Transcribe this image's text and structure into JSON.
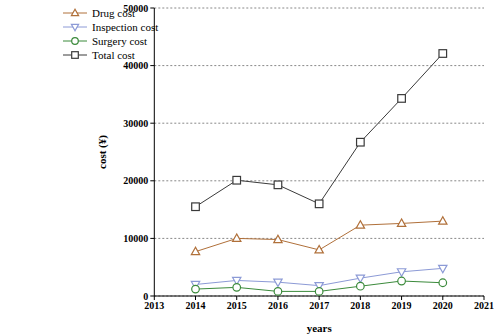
{
  "chart_data": {
    "type": "line",
    "x_label": "years",
    "y_label": "cost (¥)",
    "x": [
      2014,
      2015,
      2016,
      2017,
      2018,
      2019,
      2020
    ],
    "xlim": [
      2013,
      2021
    ],
    "xticks": [
      2013,
      2014,
      2015,
      2016,
      2017,
      2018,
      2019,
      2020,
      2021
    ],
    "ylim": [
      0,
      50000
    ],
    "yticks": [
      0,
      10000,
      20000,
      30000,
      40000,
      50000
    ],
    "grid": true,
    "legend": "upper left",
    "series": [
      {
        "name": "Total cost",
        "color": "#3a3a3a",
        "marker": "square",
        "values": [
          15500,
          20100,
          19300,
          16000,
          26700,
          34300,
          42100
        ]
      },
      {
        "name": "Drug cost",
        "color": "#b0703a",
        "marker": "triangle",
        "values": [
          7700,
          10000,
          9800,
          8000,
          12300,
          12600,
          13000
        ]
      },
      {
        "name": "Inspection cost",
        "color": "#8c9ad6",
        "marker": "triangle_down",
        "values": [
          2000,
          2700,
          2400,
          1800,
          3100,
          4200,
          4800
        ]
      },
      {
        "name": "Surgery cost",
        "color": "#3b8a3b",
        "marker": "circle",
        "values": [
          1200,
          1500,
          800,
          800,
          1700,
          2600,
          2300
        ]
      }
    ]
  }
}
